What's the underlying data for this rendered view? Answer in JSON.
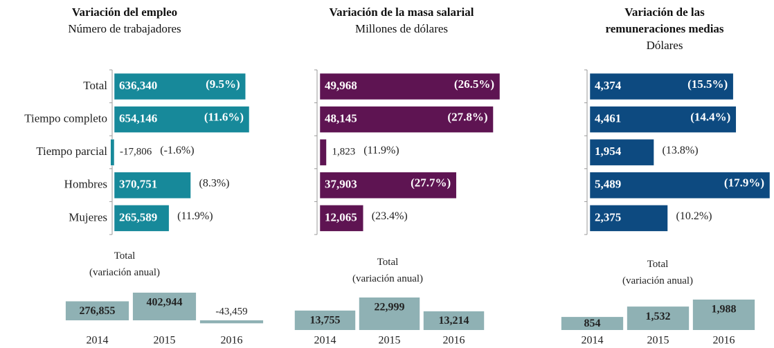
{
  "chart_data": [
    {
      "type": "hbar",
      "title": "Variación del empleo",
      "subtitle": "Número de trabajadores",
      "categories": [
        "Total",
        "Tiempo completo",
        "Tiempo parcial",
        "Hombres",
        "Mujeres"
      ],
      "values": [
        636340,
        654146,
        -17806,
        370751,
        265589
      ],
      "value_labels": [
        "636,340",
        "654,146",
        "-17,806",
        "370,751",
        "265,589"
      ],
      "annotations": [
        "(9.5%)",
        "(11.6%)",
        "(-1.6%)",
        "(8.3%)",
        "(11.9%)"
      ],
      "color": "#17899a"
    },
    {
      "type": "hbar",
      "title": "Variación de la masa salarial",
      "subtitle": "Millones de dólares",
      "values": [
        49968,
        48145,
        1823,
        37903,
        12065
      ],
      "value_labels": [
        "49,968",
        "48,145",
        "1,823",
        "37,903",
        "12,065"
      ],
      "annotations": [
        "(26.5%)",
        "(27.8%)",
        "(11.9%)",
        "(27.7%)",
        "(23.4%)"
      ],
      "color": "#5e1452"
    },
    {
      "type": "hbar",
      "title": "Variación de las remuneraciones medias",
      "subtitle": "Dólares",
      "values": [
        4374,
        4461,
        1954,
        5489,
        2375
      ],
      "value_labels": [
        "4,374",
        "4,461",
        "1,954",
        "5,489",
        "2,375"
      ],
      "annotations": [
        "(15.5%)",
        "(14.4%)",
        "(13.8%)",
        "(17.9%)",
        "(10.2%)"
      ],
      "color": "#0d4a80"
    },
    {
      "type": "bar",
      "title": "Total",
      "subtitle": "(variación anual)",
      "categories": [
        "2014",
        "2015",
        "2016"
      ],
      "values": [
        276855,
        402944,
        -43459
      ],
      "value_labels": [
        "276,855",
        "402,944",
        "-43,459"
      ],
      "color": "#8fb1b4"
    },
    {
      "type": "bar",
      "title": "Total",
      "subtitle": "(variación anual)",
      "categories": [
        "2014",
        "2015",
        "2016"
      ],
      "values": [
        13755,
        22999,
        13214
      ],
      "value_labels": [
        "13,755",
        "22,999",
        "13,214"
      ],
      "color": "#8fb1b4"
    },
    {
      "type": "bar",
      "title": "Total",
      "subtitle": "(variación anual)",
      "categories": [
        "2014",
        "2015",
        "2016"
      ],
      "values": [
        854,
        1532,
        1988
      ],
      "value_labels": [
        "854",
        "1,532",
        "1,988"
      ],
      "color": "#8fb1b4"
    }
  ]
}
